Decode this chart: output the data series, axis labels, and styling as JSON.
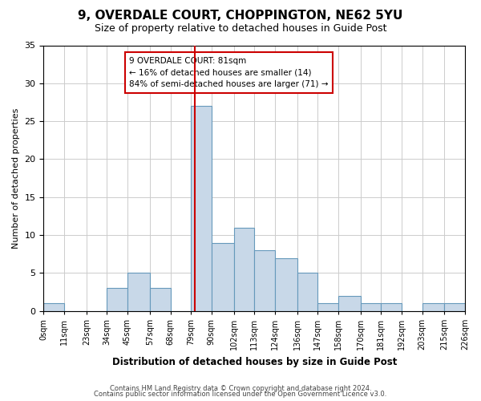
{
  "title": "9, OVERDALE COURT, CHOPPINGTON, NE62 5YU",
  "subtitle": "Size of property relative to detached houses in Guide Post",
  "xlabel": "Distribution of detached houses by size in Guide Post",
  "ylabel": "Number of detached properties",
  "bar_color": "#c8d8e8",
  "bar_edge_color": "#6699bb",
  "bin_labels": [
    "0sqm",
    "11sqm",
    "23sqm",
    "34sqm",
    "45sqm",
    "57sqm",
    "68sqm",
    "79sqm",
    "90sqm",
    "102sqm",
    "113sqm",
    "124sqm",
    "136sqm",
    "147sqm",
    "158sqm",
    "170sqm",
    "181sqm",
    "192sqm",
    "203sqm",
    "215sqm",
    "226sqm"
  ],
  "bin_edges": [
    0,
    11,
    23,
    34,
    45,
    57,
    68,
    79,
    90,
    102,
    113,
    124,
    136,
    147,
    158,
    170,
    181,
    192,
    203,
    215,
    226
  ],
  "counts": [
    1,
    0,
    0,
    3,
    5,
    3,
    0,
    27,
    9,
    11,
    8,
    7,
    5,
    1,
    2,
    1,
    1,
    0,
    1,
    1
  ],
  "ylim": [
    0,
    35
  ],
  "yticks": [
    0,
    5,
    10,
    15,
    20,
    25,
    30,
    35
  ],
  "property_size": 81,
  "annotation_title": "9 OVERDALE COURT: 81sqm",
  "annotation_line1": "← 16% of detached houses are smaller (14)",
  "annotation_line2": "84% of semi-detached houses are larger (71) →",
  "vline_color": "#cc0000",
  "footer_line1": "Contains HM Land Registry data © Crown copyright and database right 2024.",
  "footer_line2": "Contains public sector information licensed under the Open Government Licence v3.0.",
  "background_color": "#ffffff",
  "grid_color": "#cccccc"
}
